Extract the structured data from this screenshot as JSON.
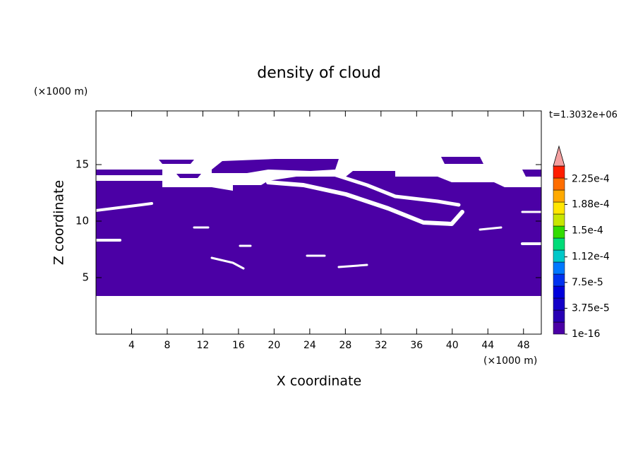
{
  "chart_data": {
    "type": "contour",
    "title": "density of cloud",
    "xlabel": "X coordinate",
    "ylabel": "Z coordinate",
    "x_unit": "(×1000 m)",
    "y_unit": "(×1000 m)",
    "time_label": "t=1.3032e+06",
    "xlim": [
      0,
      50
    ],
    "ylim": [
      0,
      20
    ],
    "xticks": [
      4,
      8,
      12,
      16,
      20,
      24,
      28,
      32,
      36,
      40,
      44,
      48
    ],
    "yticks": [
      5,
      10,
      15
    ],
    "field_color": "#4b00a5",
    "colorbar": {
      "lim": [
        0,
        0.00024375
      ],
      "colors": [
        "#4b00a5",
        "#2800b4",
        "#1400c8",
        "#0000dc",
        "#0032f0",
        "#0078ff",
        "#00c8c8",
        "#00dc78",
        "#32dc00",
        "#c8e600",
        "#ffe600",
        "#ffaa00",
        "#ff6e00",
        "#ff1e00"
      ],
      "extend_color": "#f4a0a0",
      "ticks": [
        1e-16,
        {
          "value": 3.75e-05,
          "label": "3.75e-5"
        },
        {
          "value": 7.5e-05,
          "label": "7.5e-5"
        },
        {
          "value": 0.000112,
          "label": "1.12e-4"
        },
        {
          "value": 0.00015,
          "label": "1.5e-4"
        },
        {
          "value": 0.000188,
          "label": "1.88e-4"
        },
        {
          "value": 0.000225,
          "label": "2.25e-4"
        }
      ]
    }
  }
}
